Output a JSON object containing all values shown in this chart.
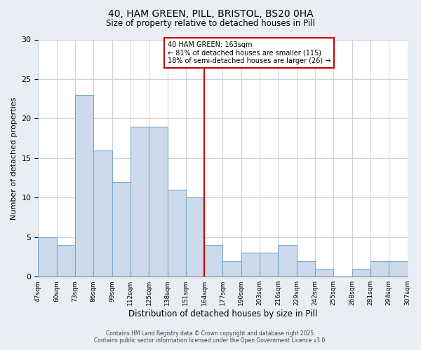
{
  "title1": "40, HAM GREEN, PILL, BRISTOL, BS20 0HA",
  "title2": "Size of property relative to detached houses in Pill",
  "xlabel": "Distribution of detached houses by size in Pill",
  "ylabel": "Number of detached properties",
  "bin_labels": [
    "47sqm",
    "60sqm",
    "73sqm",
    "86sqm",
    "99sqm",
    "112sqm",
    "125sqm",
    "138sqm",
    "151sqm",
    "164sqm",
    "177sqm",
    "190sqm",
    "203sqm",
    "216sqm",
    "229sqm",
    "242sqm",
    "255sqm",
    "268sqm",
    "281sqm",
    "294sqm",
    "307sqm"
  ],
  "bin_values": [
    5,
    4,
    23,
    16,
    12,
    19,
    19,
    11,
    10,
    4,
    2,
    3,
    3,
    4,
    2,
    1,
    0,
    1,
    2,
    2
  ],
  "bar_color": "#ccdaeb",
  "bar_edge_color": "#7aaac8",
  "marker_bin_index": 9,
  "marker_color": "#cc0000",
  "annotation_title": "40 HAM GREEN: 163sqm",
  "annotation_line1": "← 81% of detached houses are smaller (115)",
  "annotation_line2": "18% of semi-detached houses are larger (26) →",
  "annotation_box_color": "#ffffff",
  "annotation_box_edge": "#cc0000",
  "ylim": [
    0,
    30
  ],
  "yticks": [
    0,
    5,
    10,
    15,
    20,
    25,
    30
  ],
  "footer1": "Contains HM Land Registry data © Crown copyright and database right 2025.",
  "footer2": "Contains public sector information licensed under the Open Government Licence v3.0.",
  "background_color": "#e8eef4",
  "plot_background": "#ffffff",
  "grid_color": "#c8d0d8"
}
